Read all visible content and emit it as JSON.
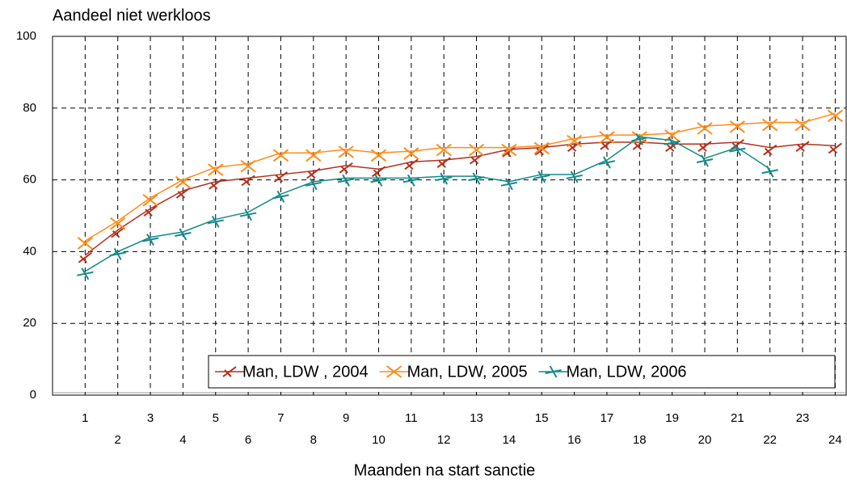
{
  "chart_data": {
    "type": "line",
    "ylabel": "Aandeel niet werkloos",
    "xlabel": "Maanden na start sanctie",
    "categories": [
      "1",
      "2",
      "3",
      "4",
      "5",
      "6",
      "7",
      "8",
      "9",
      "10",
      "11",
      "12",
      "13",
      "14",
      "15",
      "16",
      "17",
      "18",
      "19",
      "20",
      "21",
      "22",
      "23",
      "24"
    ],
    "series": [
      {
        "name": "Man, LDW , 2004",
        "color": "#b5301e",
        "values": [
          39,
          46,
          52,
          57,
          59.5,
          60.5,
          61.5,
          62.5,
          64,
          63,
          65,
          65.5,
          66.5,
          68.5,
          69,
          70,
          70.5,
          70.5,
          70,
          70,
          70.5,
          69,
          70,
          69.5
        ]
      },
      {
        "name": "Man, LDW, 2005",
        "color": "#ff8c1a",
        "values": [
          43,
          48.5,
          55,
          60,
          63.5,
          64.5,
          67.5,
          67.5,
          68.5,
          67.5,
          68,
          69,
          69,
          69,
          69.5,
          71.5,
          72.5,
          72.5,
          73,
          75,
          75.5,
          76,
          76,
          78.5
        ]
      },
      {
        "name": "Man, LDW, 2006",
        "color": "#138a8a",
        "values": [
          34.5,
          40,
          44,
          45.5,
          49,
          51,
          56,
          59.5,
          60.5,
          60.5,
          60.5,
          61,
          61,
          59.5,
          61.5,
          61.5,
          65.5,
          72,
          71,
          66,
          69,
          63,
          null,
          null
        ]
      }
    ],
    "ylim": [
      0,
      100
    ],
    "yticks": [
      0,
      20,
      40,
      60,
      80,
      100
    ],
    "grid": true,
    "legend": "lower right"
  }
}
